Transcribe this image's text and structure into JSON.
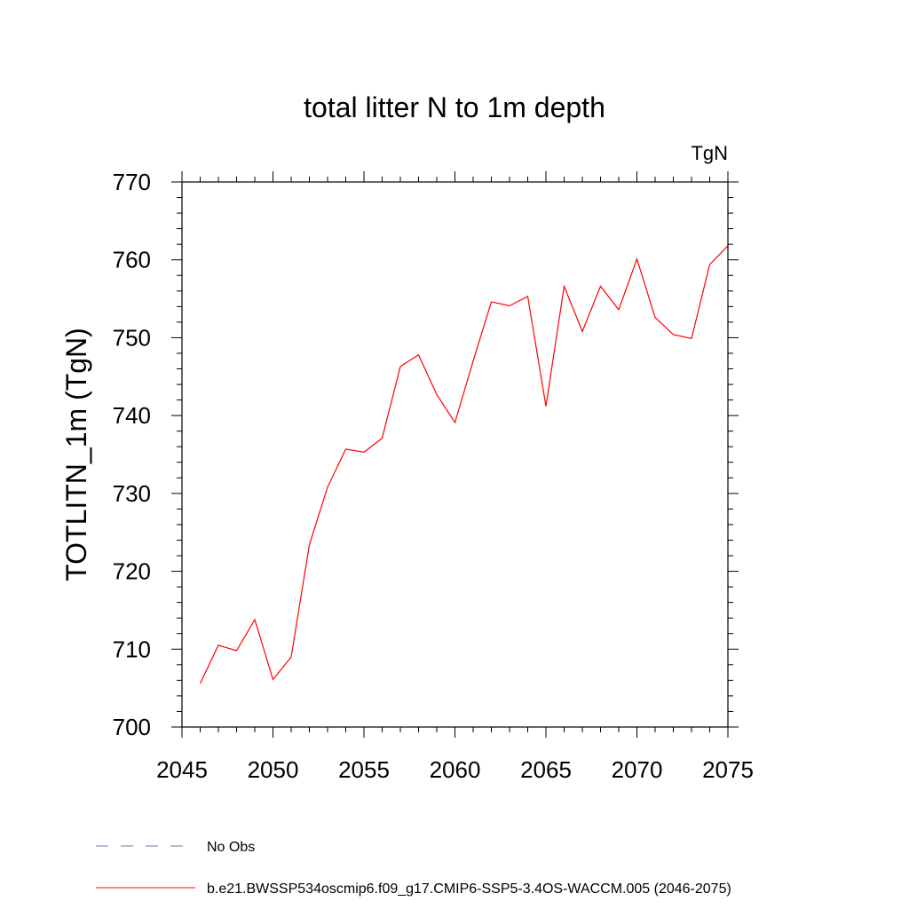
{
  "chart_data": {
    "type": "line",
    "title": "total litter N to 1m depth",
    "units": "TgN",
    "ylabel": "TOTLITN_1m  (TgN)",
    "xlabel": "",
    "xlim": [
      2045,
      2075
    ],
    "ylim": [
      700,
      770
    ],
    "xticks": [
      2045,
      2050,
      2055,
      2060,
      2065,
      2070,
      2075
    ],
    "yticks": [
      700,
      710,
      720,
      730,
      740,
      750,
      760,
      770
    ],
    "x": [
      2046,
      2047,
      2048,
      2049,
      2050,
      2051,
      2052,
      2053,
      2054,
      2055,
      2056,
      2057,
      2058,
      2059,
      2060,
      2061,
      2062,
      2063,
      2064,
      2065,
      2066,
      2067,
      2068,
      2069,
      2070,
      2071,
      2072,
      2073,
      2074,
      2075
    ],
    "series": [
      {
        "name": "b.e21.BWSSP534oscmip6.f09_g17.CMIP6-SSP5-3.4OS-WACCM.005 (2046-2075)",
        "color": "#ff0000",
        "style": "solid",
        "values": [
          705.6,
          710.5,
          709.8,
          713.8,
          706.1,
          709.0,
          723.4,
          730.8,
          735.7,
          735.3,
          737.1,
          746.3,
          747.8,
          742.7,
          739.1,
          747.0,
          754.6,
          754.1,
          755.3,
          741.2,
          756.6,
          750.8,
          756.6,
          753.6,
          760.1,
          752.6,
          750.4,
          749.9,
          759.4,
          761.8
        ]
      }
    ],
    "legend": [
      {
        "label": "No Obs",
        "color": "#7b6fb0",
        "style": "dashed"
      },
      {
        "label": "b.e21.BWSSP534oscmip6.f09_g17.CMIP6-SSP5-3.4OS-WACCM.005 (2046-2075)",
        "color": "#ff0000",
        "style": "solid"
      }
    ],
    "legend_position": "bottom-left",
    "grid": false
  }
}
